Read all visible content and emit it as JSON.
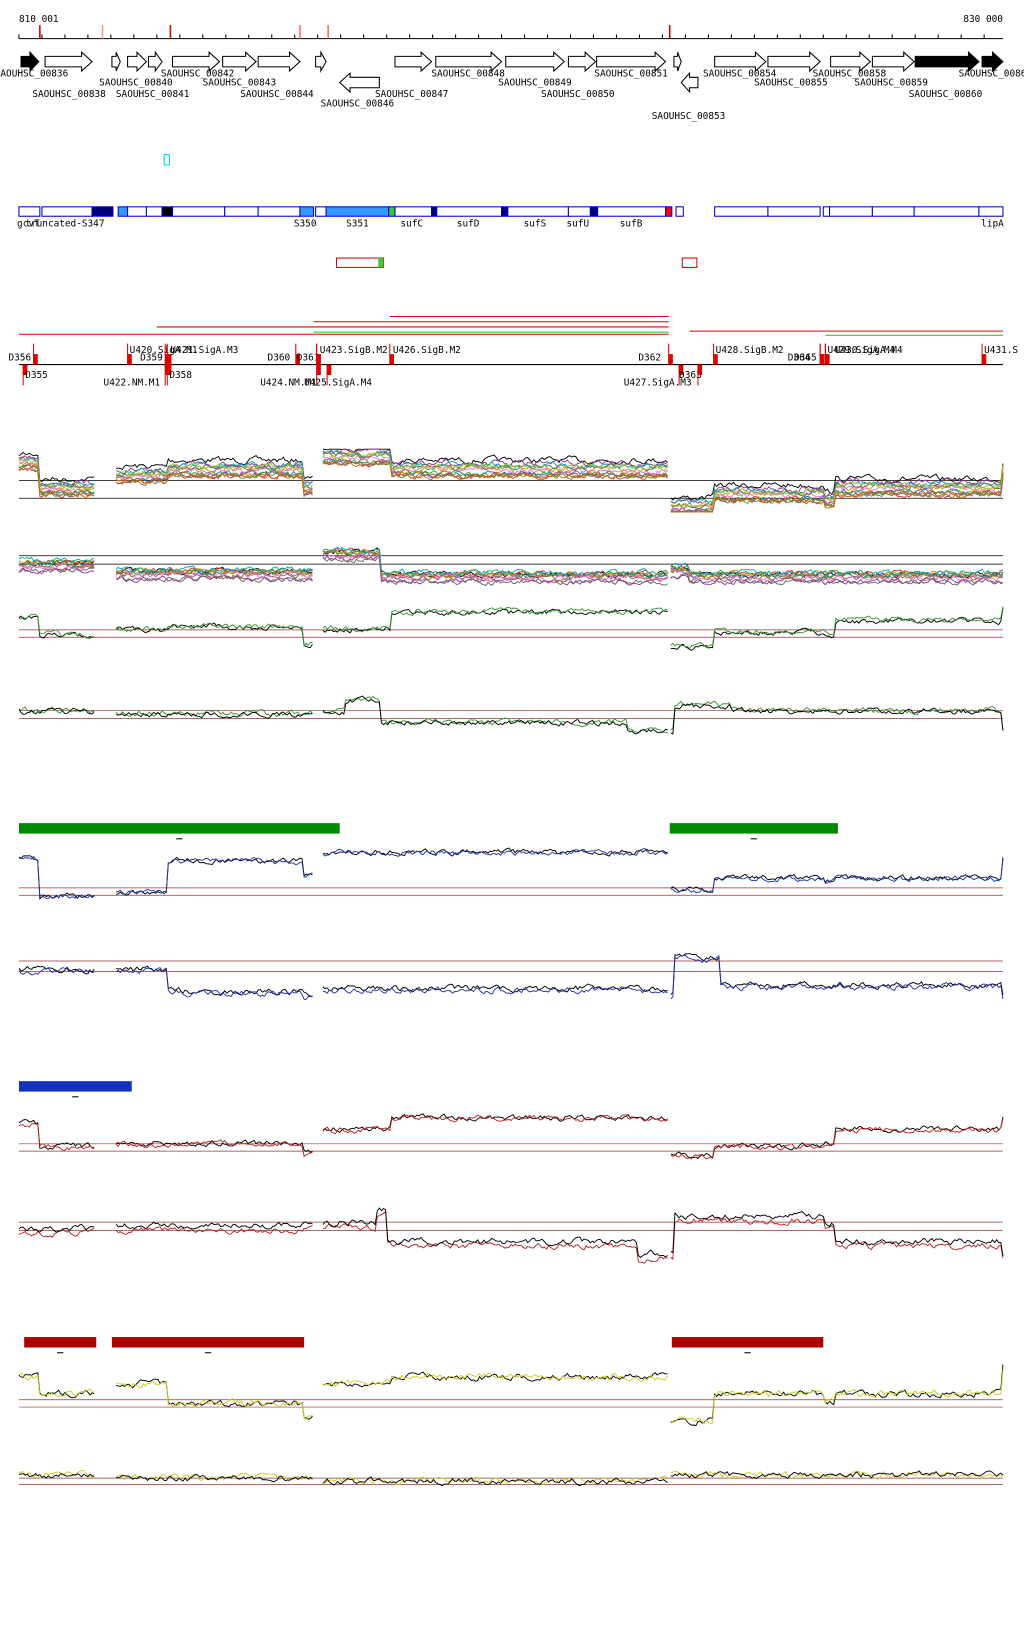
{
  "ruler": {
    "start": "810 001",
    "end": "830 000"
  },
  "genes": [
    "SAOUHSC_00836",
    "SAOUHSC_00838",
    "SAOUHSC_00840",
    "SAOUHSC_00841",
    "SAOUHSC_00842",
    "SAOUHSC_00843",
    "SAOUHSC_00844",
    "SAOUHSC_00846",
    "SAOUHSC_00847",
    "SAOUHSC_00848",
    "SAOUHSC_00849",
    "SAOUHSC_00850",
    "SAOUHSC_00851",
    "SAOUHSC_00853",
    "SAOUHSC_00854",
    "SAOUHSC_00855",
    "SAOUHSC_00858",
    "SAOUHSC_00859",
    "SAOUHSC_00860",
    "SAOUHSC_0086"
  ],
  "annotations": [
    "gcvT",
    "truncated-S347",
    "S350",
    "S351",
    "sufC",
    "sufD",
    "sufS",
    "sufU",
    "sufB",
    "lipA"
  ],
  "promoters": [
    "D356",
    "D355",
    "U420.SigA.M1",
    "U421.SigA.M3",
    "D359",
    "D358",
    "U422.NM.M1",
    "D360",
    "D361",
    "U423.SigB.M2",
    "U426.SigB.M2",
    "U424.NM.M1",
    "U425.SigA.M4",
    "D362",
    "D363",
    "U427.SigA.M3",
    "U428.SigB.M2",
    "D364",
    "D365",
    "U429.SigA.M4",
    "U430.SigA.M4",
    "U431.S"
  ]
}
